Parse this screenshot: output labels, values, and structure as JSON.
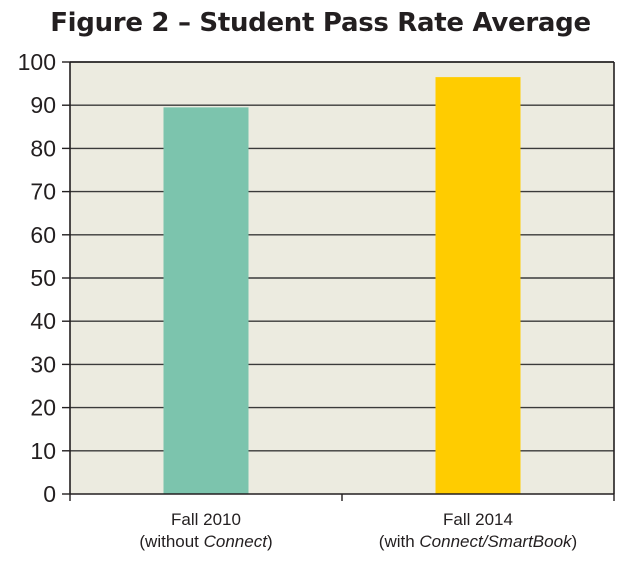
{
  "title": "Figure 2 – Student Pass Rate Average",
  "colors": {
    "plot_bg": "#ecebe0",
    "grid": "#3a3a3a",
    "axis": "#231f20"
  },
  "chart_data": {
    "type": "bar",
    "title": "Figure 2 – Student Pass Rate Average",
    "xlabel": "",
    "ylabel": "",
    "ylim": [
      0,
      100
    ],
    "yticks": [
      0,
      10,
      20,
      30,
      40,
      50,
      60,
      70,
      80,
      90,
      100
    ],
    "grid": true,
    "categories": [
      {
        "lines": [
          [
            {
              "text": "Fall 2010"
            }
          ],
          [
            {
              "text": "(without "
            },
            {
              "text": "Connect",
              "italic": true
            },
            {
              "text": ")"
            }
          ]
        ],
        "value": 89.5,
        "color": "#7cc4ad"
      },
      {
        "lines": [
          [
            {
              "text": "Fall 2014"
            }
          ],
          [
            {
              "text": "(with "
            },
            {
              "text": "Connect/SmartBook",
              "italic": true
            },
            {
              "text": ")"
            }
          ]
        ],
        "value": 96.5,
        "color": "#ffcc00"
      }
    ]
  }
}
